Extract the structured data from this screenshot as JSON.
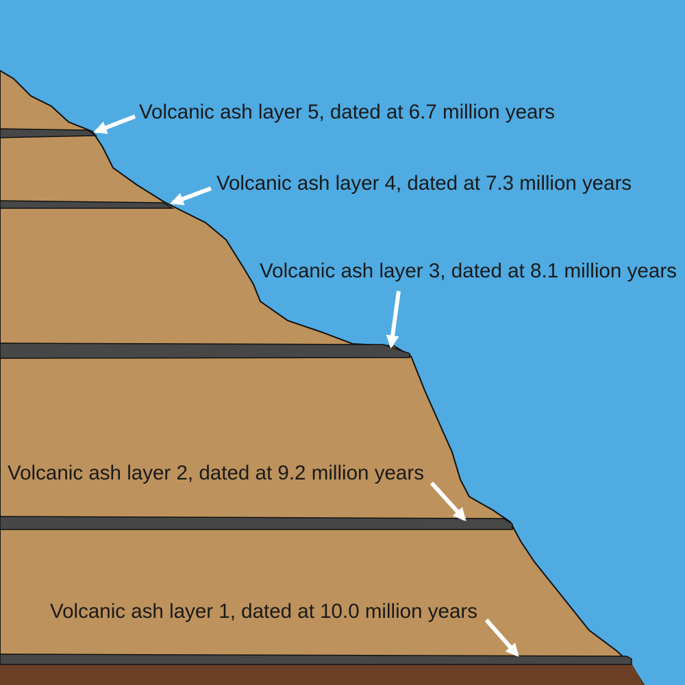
{
  "colors": {
    "sky": "#4fabe2",
    "rock": "#bd925c",
    "base_rock": "#6b3f25",
    "ash": "#474747",
    "outline": "#111111",
    "arrow": "#ffffff",
    "text": "#1a1a1a"
  },
  "labels": [
    {
      "id": "layer-5",
      "text": "Volcanic ash layer 5, dated at 6.7 million years",
      "age_million_years": 6.7
    },
    {
      "id": "layer-4",
      "text": "Volcanic ash layer 4, dated at 7.3 million years",
      "age_million_years": 7.3
    },
    {
      "id": "layer-3",
      "text": "Volcanic ash layer 3, dated at 8.1 million years",
      "age_million_years": 8.1
    },
    {
      "id": "layer-2",
      "text": "Volcanic ash layer 2, dated at 9.2 million years",
      "age_million_years": 9.2
    },
    {
      "id": "layer-1",
      "text": "Volcanic ash layer 1, dated at 10.0 million years",
      "age_million_years": 10.0
    }
  ]
}
